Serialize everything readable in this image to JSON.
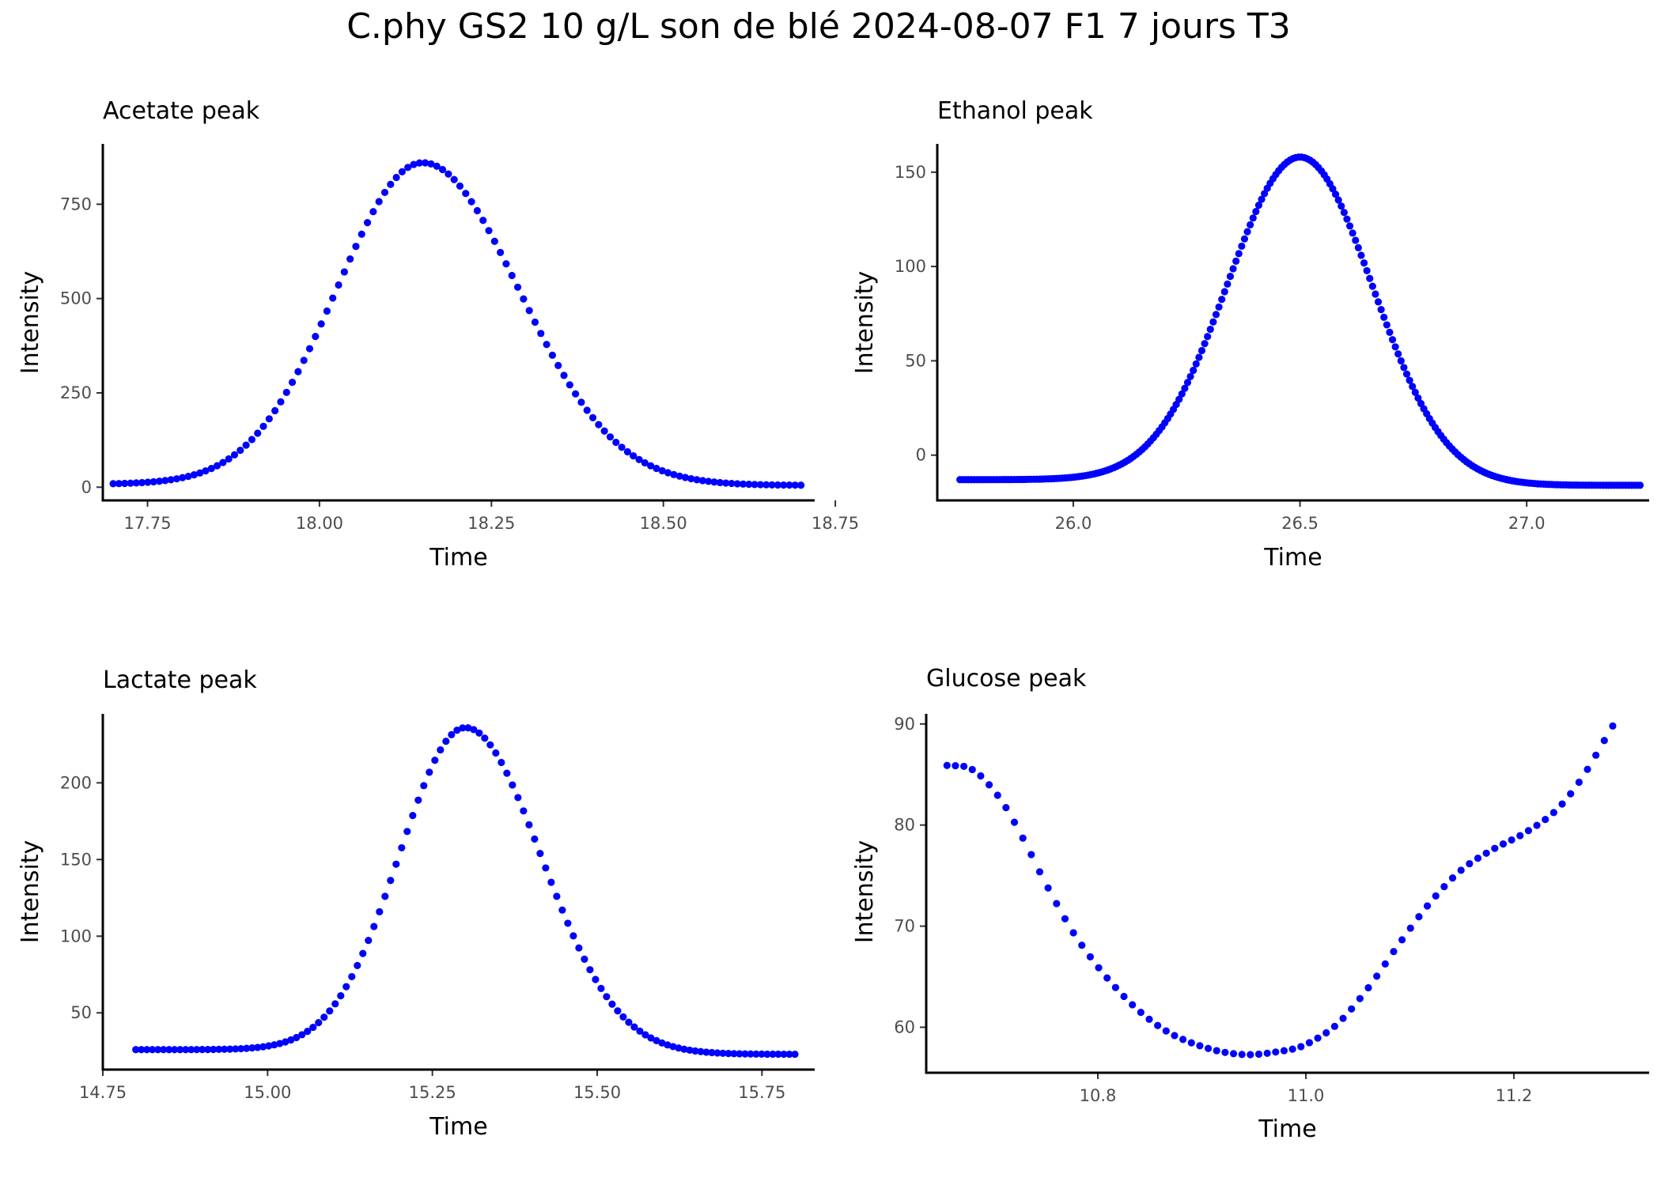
{
  "figure": {
    "title": "C.phy GS2 10 g/L son de blé 2024-08-07 F1 7 jours T3"
  },
  "colors": {
    "points": "#0000ff",
    "axis": "#000000",
    "tick_label": "#4d4d4d"
  },
  "chart_data": [
    {
      "id": "acetate",
      "type": "scatter",
      "title": "Acetate peak",
      "xlabel": "Time",
      "ylabel": "Intensity",
      "grid": false,
      "xlim": [
        17.685,
        18.72
      ],
      "ylim": [
        -35,
        910
      ],
      "xticks": [
        17.75,
        18.0,
        18.25,
        18.5,
        18.75
      ],
      "xtick_labels": [
        "17.75",
        "18.00",
        "18.25",
        "18.50",
        "18.75"
      ],
      "yticks": [
        0,
        250,
        500,
        750
      ],
      "ytick_labels": [
        "0",
        "250",
        "500",
        "750"
      ],
      "curve": {
        "x_start": 17.7,
        "x_end": 18.7,
        "n_points": 120,
        "peak_x": 18.15,
        "peak_y": 860,
        "sigma_left": 0.125,
        "sigma_right": 0.14,
        "baseline_left": 8,
        "baseline_right": 5
      }
    },
    {
      "id": "ethanol",
      "type": "scatter",
      "title": "Ethanol peak",
      "xlabel": "Time",
      "ylabel": "Intensity",
      "grid": false,
      "xlim": [
        25.7,
        27.27
      ],
      "ylim": [
        -24,
        165
      ],
      "xticks": [
        26.0,
        26.5,
        27.0
      ],
      "xtick_labels": [
        "26.0",
        "26.5",
        "27.0"
      ],
      "yticks": [
        0,
        50,
        100,
        150
      ],
      "ytick_labels": [
        "0",
        "50",
        "100",
        "150"
      ],
      "curve": {
        "x_start": 25.75,
        "x_end": 27.25,
        "n_points": 240,
        "peak_x": 26.5,
        "peak_y": 158,
        "sigma_left": 0.16,
        "sigma_right": 0.16,
        "baseline_left": -13,
        "baseline_right": -16
      }
    },
    {
      "id": "lactate",
      "type": "scatter",
      "title": "Lactate peak",
      "xlabel": "Time",
      "ylabel": "Intensity",
      "grid": false,
      "xlim": [
        14.75,
        15.83
      ],
      "ylim": [
        13,
        245
      ],
      "xticks": [
        14.75,
        15.0,
        15.25,
        15.5,
        15.75
      ],
      "xtick_labels": [
        "14.75",
        "15.00",
        "15.25",
        "15.50",
        "15.75"
      ],
      "yticks": [
        50,
        100,
        150,
        200
      ],
      "ytick_labels": [
        "50",
        "100",
        "150",
        "200"
      ],
      "curve": {
        "x_start": 14.8,
        "x_end": 15.8,
        "n_points": 120,
        "peak_x": 15.3,
        "peak_y": 236,
        "sigma_left": 0.1,
        "sigma_right": 0.115,
        "baseline_left": 26,
        "baseline_right": 23
      }
    },
    {
      "id": "glucose",
      "type": "scatter",
      "title": "Glucose peak",
      "xlabel": "Time",
      "ylabel": "Intensity",
      "grid": false,
      "xlim": [
        10.635,
        11.33
      ],
      "ylim": [
        55.5,
        91
      ],
      "xticks": [
        10.8,
        11.0,
        11.2
      ],
      "xtick_labels": [
        "10.8",
        "11.0",
        "11.2"
      ],
      "yticks": [
        60,
        70,
        80,
        90
      ],
      "ytick_labels": [
        "60",
        "70",
        "80",
        "90"
      ],
      "curve": {
        "x_start": 10.655,
        "x_end": 11.295,
        "n_points": 80,
        "knots_x": [
          10.655,
          10.675,
          10.69,
          10.71,
          10.73,
          10.75,
          10.78,
          10.82,
          10.86,
          10.9,
          10.94,
          10.98,
          11.0,
          11.03,
          11.06,
          11.09,
          11.12,
          11.15,
          11.18,
          11.21,
          11.24,
          11.265,
          11.295
        ],
        "knots_y": [
          85.9,
          85.7,
          84.6,
          82.0,
          78.3,
          74.2,
          68.8,
          63.6,
          60.0,
          58.1,
          57.3,
          57.7,
          58.3,
          60.3,
          63.9,
          68.3,
          72.4,
          75.6,
          77.6,
          79.2,
          81.4,
          84.6,
          89.8
        ]
      }
    }
  ]
}
